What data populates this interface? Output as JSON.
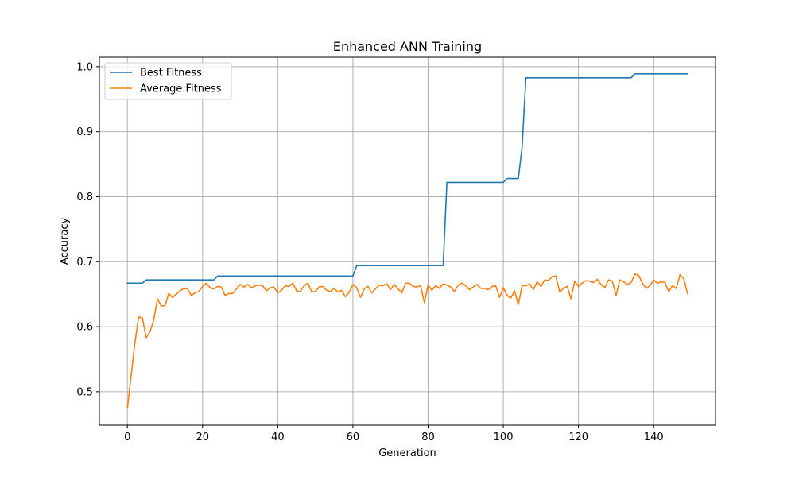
{
  "chart_data": {
    "type": "line",
    "title": "Enhanced ANN Training",
    "xlabel": "Generation",
    "ylabel": "Accuracy",
    "xlim": [
      -7.45,
      156.45
    ],
    "ylim": [
      0.4485,
      1.0145
    ],
    "xticks": [
      0,
      20,
      40,
      60,
      80,
      100,
      120,
      140
    ],
    "yticks": [
      0.5,
      0.6,
      0.7,
      0.8,
      0.9,
      1.0
    ],
    "xtick_labels": [
      "0",
      "20",
      "40",
      "60",
      "80",
      "100",
      "120",
      "140"
    ],
    "ytick_labels": [
      "0.5",
      "0.6",
      "0.7",
      "0.8",
      "0.9",
      "1.0"
    ],
    "grid": true,
    "legend_position": "top-left",
    "series": [
      {
        "name": "Best Fitness",
        "color": "#1f77b4",
        "x": [
          0,
          4,
          5,
          23,
          24,
          60,
          61,
          84,
          85,
          100,
          101,
          104,
          105,
          106,
          134,
          135,
          149
        ],
        "y": [
          0.667,
          0.667,
          0.672,
          0.672,
          0.678,
          0.678,
          0.694,
          0.694,
          0.822,
          0.822,
          0.828,
          0.828,
          0.876,
          0.983,
          0.983,
          0.989,
          0.989
        ]
      },
      {
        "name": "Average Fitness",
        "color": "#ff7f0e",
        "x": [
          0,
          1,
          2,
          3,
          4,
          5,
          6,
          7,
          8,
          9,
          10,
          11,
          12,
          13,
          14,
          15,
          16,
          17,
          18,
          19,
          20,
          21,
          22,
          23,
          24,
          25,
          26,
          27,
          28,
          29,
          30,
          31,
          32,
          33,
          34,
          35,
          36,
          37,
          38,
          39,
          40,
          41,
          42,
          43,
          44,
          45,
          46,
          47,
          48,
          49,
          50,
          51,
          52,
          53,
          54,
          55,
          56,
          57,
          58,
          59,
          60,
          61,
          62,
          63,
          64,
          65,
          66,
          67,
          68,
          69,
          70,
          71,
          72,
          73,
          74,
          75,
          76,
          77,
          78,
          79,
          80,
          81,
          82,
          83,
          84,
          85,
          86,
          87,
          88,
          89,
          90,
          91,
          92,
          93,
          94,
          95,
          96,
          97,
          98,
          99,
          100,
          101,
          102,
          103,
          104,
          105,
          106,
          107,
          108,
          109,
          110,
          111,
          112,
          113,
          114,
          115,
          116,
          117,
          118,
          119,
          120,
          121,
          122,
          123,
          124,
          125,
          126,
          127,
          128,
          129,
          130,
          131,
          132,
          133,
          134,
          135,
          136,
          137,
          138,
          139,
          140,
          141,
          142,
          143,
          144,
          145,
          146,
          147,
          148,
          149
        ],
        "y": [
          0.475,
          0.525,
          0.575,
          0.615,
          0.613,
          0.583,
          0.592,
          0.61,
          0.643,
          0.632,
          0.632,
          0.651,
          0.645,
          0.65,
          0.655,
          0.659,
          0.658,
          0.648,
          0.652,
          0.654,
          0.662,
          0.667,
          0.66,
          0.658,
          0.662,
          0.661,
          0.648,
          0.651,
          0.651,
          0.658,
          0.665,
          0.661,
          0.665,
          0.66,
          0.663,
          0.664,
          0.663,
          0.655,
          0.66,
          0.661,
          0.652,
          0.656,
          0.663,
          0.662,
          0.667,
          0.655,
          0.654,
          0.663,
          0.667,
          0.654,
          0.654,
          0.661,
          0.662,
          0.656,
          0.654,
          0.659,
          0.653,
          0.656,
          0.646,
          0.653,
          0.665,
          0.66,
          0.645,
          0.658,
          0.662,
          0.652,
          0.658,
          0.664,
          0.663,
          0.666,
          0.657,
          0.665,
          0.658,
          0.652,
          0.667,
          0.667,
          0.662,
          0.661,
          0.663,
          0.637,
          0.664,
          0.656,
          0.663,
          0.659,
          0.666,
          0.664,
          0.661,
          0.654,
          0.664,
          0.667,
          0.663,
          0.657,
          0.661,
          0.665,
          0.659,
          0.659,
          0.657,
          0.662,
          0.663,
          0.645,
          0.66,
          0.648,
          0.644,
          0.655,
          0.634,
          0.663,
          0.663,
          0.666,
          0.657,
          0.669,
          0.662,
          0.672,
          0.671,
          0.677,
          0.678,
          0.653,
          0.659,
          0.662,
          0.643,
          0.67,
          0.662,
          0.667,
          0.671,
          0.67,
          0.668,
          0.673,
          0.665,
          0.66,
          0.672,
          0.67,
          0.648,
          0.672,
          0.669,
          0.665,
          0.668,
          0.681,
          0.679,
          0.667,
          0.659,
          0.663,
          0.672,
          0.667,
          0.669,
          0.668,
          0.654,
          0.663,
          0.659,
          0.68,
          0.674,
          0.651
        ]
      }
    ]
  }
}
